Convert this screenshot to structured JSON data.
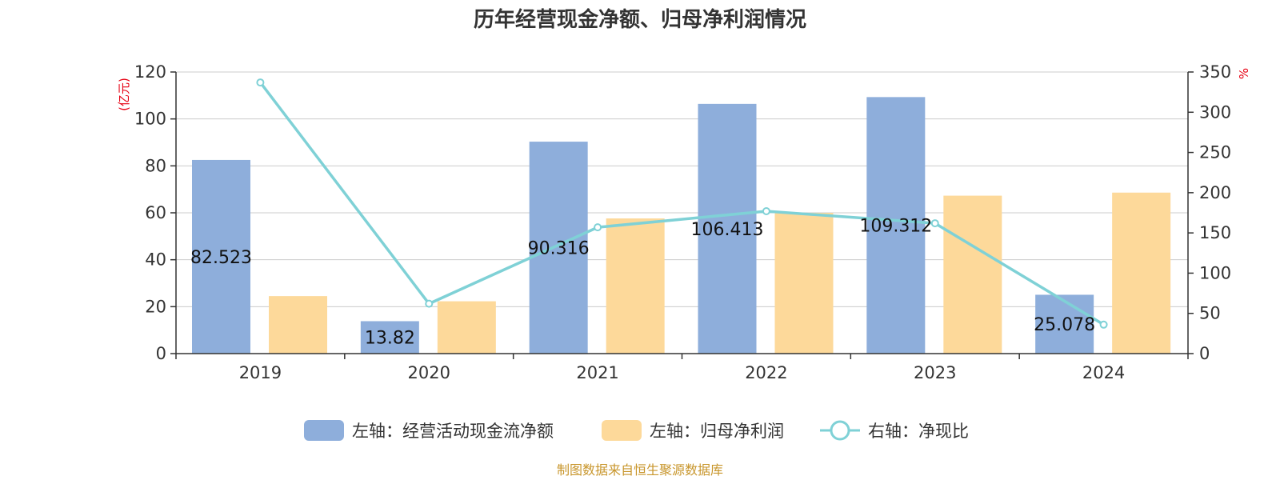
{
  "chart_data": {
    "type": "bar",
    "title": "历年经营现金净额、归母净利润情况",
    "categories": [
      "2019",
      "2020",
      "2021",
      "2022",
      "2023",
      "2024"
    ],
    "y_left": {
      "unit": "(亿元)",
      "min": 0,
      "max": 120,
      "ticks": [
        "0",
        "20",
        "40",
        "60",
        "80",
        "100",
        "120"
      ]
    },
    "y_right": {
      "unit": "%",
      "min": 0,
      "max": 350,
      "ticks": [
        "0",
        "50",
        "100",
        "150",
        "200",
        "250",
        "300",
        "350"
      ]
    },
    "grid": true,
    "legend_position": "bottom-center",
    "series": [
      {
        "name": "左轴：经营活动现金流净额",
        "type": "bar",
        "axis": "left",
        "color": "#8eaedb",
        "values": [
          82.523,
          13.82,
          90.316,
          106.413,
          109.312,
          25.078
        ],
        "labels": [
          "82.523",
          "13.82",
          "90.316",
          "106.413",
          "109.312",
          "25.078"
        ]
      },
      {
        "name": "左轴：归母净利润",
        "type": "bar",
        "axis": "left",
        "color": "#fdd99a",
        "values": [
          24.5,
          22.3,
          57.6,
          60.0,
          67.3,
          68.6
        ]
      },
      {
        "name": "右轴：净现比",
        "type": "line",
        "axis": "right",
        "color": "#7fd1d6",
        "values": [
          337,
          62,
          157,
          177,
          162,
          36
        ]
      }
    ],
    "source": "制图数据来自恒生聚源数据库"
  }
}
